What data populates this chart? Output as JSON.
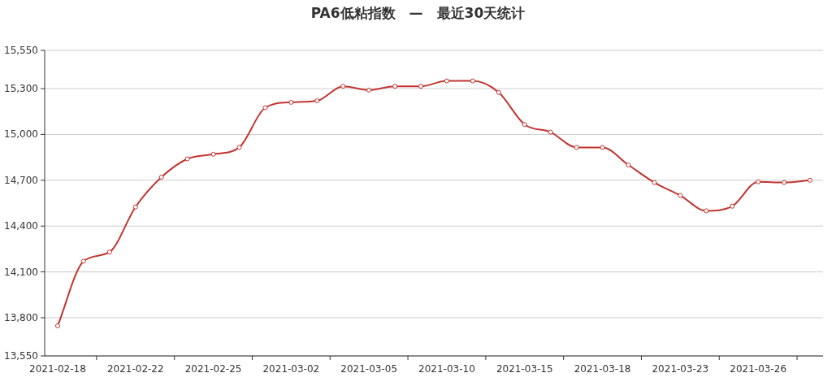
{
  "chart_data": {
    "type": "line",
    "title": "PA6低粘指数　—　最近30天统计",
    "categories": [
      "2021-02-18",
      null,
      null,
      "2021-02-22",
      null,
      null,
      "2021-02-25",
      null,
      null,
      "2021-03-02",
      null,
      null,
      "2021-03-05",
      null,
      null,
      "2021-03-10",
      null,
      null,
      "2021-03-15",
      null,
      null,
      "2021-03-18",
      null,
      null,
      "2021-03-23",
      null,
      null,
      "2021-03-26",
      null,
      null
    ],
    "series": [
      {
        "color": "#c23531",
        "values": [
          13747,
          14170,
          14230,
          14525,
          14720,
          14840,
          14870,
          14915,
          15175,
          15210,
          15220,
          15315,
          15290,
          15315,
          15315,
          15350,
          15350,
          15275,
          15065,
          15015,
          14915,
          14915,
          14800,
          14685,
          14600,
          14500,
          14530,
          14690,
          14685,
          14700
        ]
      }
    ],
    "ylim": [
      13550,
      15550
    ],
    "yticks": [
      {
        "value": 13550,
        "label": "13,550"
      },
      {
        "value": 13800,
        "label": "13,800"
      },
      {
        "value": 14100,
        "label": "14,100"
      },
      {
        "value": 14400,
        "label": "14,400"
      },
      {
        "value": 14700,
        "label": "14,700"
      },
      {
        "value": 15000,
        "label": "15,000"
      },
      {
        "value": 15300,
        "label": "15,300"
      },
      {
        "value": 15550,
        "label": "15,550"
      }
    ],
    "grid": "y",
    "marker": "circle",
    "line_style": "solid"
  }
}
